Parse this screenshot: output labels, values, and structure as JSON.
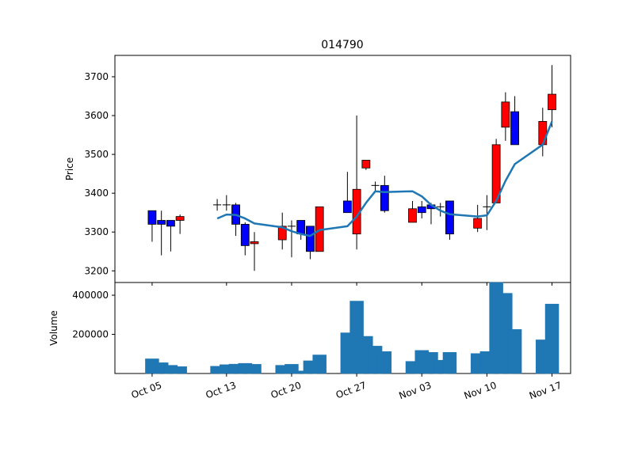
{
  "chart_data": {
    "type": "candlestick",
    "title": "014790",
    "price_panel": {
      "ylabel": "Price",
      "ylim": [
        3170,
        3755
      ],
      "yticks": [
        3200,
        3300,
        3400,
        3500,
        3600,
        3700
      ],
      "ytick_labels": [
        "3200",
        "3300",
        "3400",
        "3500",
        "3600",
        "3700"
      ],
      "up_color": "#ff0000",
      "down_color": "#0000ff",
      "moving_average_color": "#1f77b4",
      "candles": [
        {
          "date": "2020-10-05",
          "open": 3355,
          "high": 3355,
          "low": 3275,
          "close": 3320
        },
        {
          "date": "2020-10-06",
          "open": 3330,
          "high": 3355,
          "low": 3240,
          "close": 3320
        },
        {
          "date": "2020-10-07",
          "open": 3330,
          "high": 3330,
          "low": 3250,
          "close": 3315
        },
        {
          "date": "2020-10-08",
          "open": 3330,
          "high": 3345,
          "low": 3295,
          "close": 3340
        },
        {
          "date": "2020-10-12",
          "open": 3370,
          "high": 3385,
          "low": 3355,
          "close": 3370
        },
        {
          "date": "2020-10-13",
          "open": 3370,
          "high": 3395,
          "low": 3355,
          "close": 3370
        },
        {
          "date": "2020-10-14",
          "open": 3370,
          "high": 3375,
          "low": 3290,
          "close": 3320
        },
        {
          "date": "2020-10-15",
          "open": 3320,
          "high": 3325,
          "low": 3240,
          "close": 3265
        },
        {
          "date": "2020-10-16",
          "open": 3270,
          "high": 3300,
          "low": 3200,
          "close": 3275
        },
        {
          "date": "2020-10-19",
          "open": 3280,
          "high": 3350,
          "low": 3255,
          "close": 3315
        },
        {
          "date": "2020-10-20",
          "open": 3315,
          "high": 3330,
          "low": 3235,
          "close": 3315
        },
        {
          "date": "2020-10-21",
          "open": 3330,
          "high": 3330,
          "low": 3280,
          "close": 3295
        },
        {
          "date": "2020-10-22",
          "open": 3315,
          "high": 3315,
          "low": 3230,
          "close": 3250
        },
        {
          "date": "2020-10-23",
          "open": 3250,
          "high": 3365,
          "low": 3250,
          "close": 3365
        },
        {
          "date": "2020-10-26",
          "open": 3380,
          "high": 3455,
          "low": 3350,
          "close": 3350
        },
        {
          "date": "2020-10-27",
          "open": 3295,
          "high": 3600,
          "low": 3255,
          "close": 3410
        },
        {
          "date": "2020-10-28",
          "open": 3465,
          "high": 3485,
          "low": 3460,
          "close": 3485
        },
        {
          "date": "2020-10-29",
          "open": 3420,
          "high": 3430,
          "low": 3405,
          "close": 3420
        },
        {
          "date": "2020-10-30",
          "open": 3420,
          "high": 3445,
          "low": 3350,
          "close": 3355
        },
        {
          "date": "2020-11-02",
          "open": 3325,
          "high": 3380,
          "low": 3325,
          "close": 3360
        },
        {
          "date": "2020-11-03",
          "open": 3365,
          "high": 3380,
          "low": 3335,
          "close": 3350
        },
        {
          "date": "2020-11-04",
          "open": 3370,
          "high": 3375,
          "low": 3320,
          "close": 3360
        },
        {
          "date": "2020-11-05",
          "open": 3365,
          "high": 3375,
          "low": 3340,
          "close": 3365
        },
        {
          "date": "2020-11-06",
          "open": 3380,
          "high": 3380,
          "low": 3280,
          "close": 3295
        },
        {
          "date": "2020-11-09",
          "open": 3310,
          "high": 3370,
          "low": 3300,
          "close": 3335
        },
        {
          "date": "2020-11-10",
          "open": 3365,
          "high": 3395,
          "low": 3305,
          "close": 3365
        },
        {
          "date": "2020-11-11",
          "open": 3375,
          "high": 3540,
          "low": 3375,
          "close": 3525
        },
        {
          "date": "2020-11-12",
          "open": 3570,
          "high": 3660,
          "low": 3535,
          "close": 3635
        },
        {
          "date": "2020-11-13",
          "open": 3610,
          "high": 3650,
          "low": 3525,
          "close": 3525
        },
        {
          "date": "2020-11-16",
          "open": 3525,
          "high": 3620,
          "low": 3495,
          "close": 3585
        },
        {
          "date": "2020-11-17",
          "open": 3615,
          "high": 3730,
          "low": 3570,
          "close": 3655
        }
      ],
      "moving_average": [
        {
          "date": "2020-10-12",
          "value": 3335
        },
        {
          "date": "2020-10-13",
          "value": 3345
        },
        {
          "date": "2020-10-14",
          "value": 3344
        },
        {
          "date": "2020-10-15",
          "value": 3335
        },
        {
          "date": "2020-10-16",
          "value": 3322
        },
        {
          "date": "2020-10-19",
          "value": 3312
        },
        {
          "date": "2020-10-20",
          "value": 3302
        },
        {
          "date": "2020-10-21",
          "value": 3295
        },
        {
          "date": "2020-10-22",
          "value": 3290
        },
        {
          "date": "2020-10-23",
          "value": 3305
        },
        {
          "date": "2020-10-26",
          "value": 3315
        },
        {
          "date": "2020-10-27",
          "value": 3340
        },
        {
          "date": "2020-10-28",
          "value": 3375
        },
        {
          "date": "2020-10-29",
          "value": 3405
        },
        {
          "date": "2020-10-30",
          "value": 3403
        },
        {
          "date": "2020-11-02",
          "value": 3405
        },
        {
          "date": "2020-11-03",
          "value": 3392
        },
        {
          "date": "2020-11-04",
          "value": 3370
        },
        {
          "date": "2020-11-05",
          "value": 3355
        },
        {
          "date": "2020-11-06",
          "value": 3346
        },
        {
          "date": "2020-11-09",
          "value": 3340
        },
        {
          "date": "2020-11-10",
          "value": 3343
        },
        {
          "date": "2020-11-11",
          "value": 3380
        },
        {
          "date": "2020-11-12",
          "value": 3432
        },
        {
          "date": "2020-11-13",
          "value": 3475
        },
        {
          "date": "2020-11-16",
          "value": 3525
        },
        {
          "date": "2020-11-17",
          "value": 3585
        }
      ]
    },
    "volume_panel": {
      "ylabel": "Volume",
      "ylim": [
        0,
        465000
      ],
      "yticks": [
        200000,
        400000
      ],
      "ytick_labels": [
        "200000",
        "400000"
      ],
      "bar_color": "#1f77b4",
      "volumes": [
        {
          "date": "2020-10-05",
          "value": 75000
        },
        {
          "date": "2020-10-06",
          "value": 55000
        },
        {
          "date": "2020-10-07",
          "value": 42000
        },
        {
          "date": "2020-10-08",
          "value": 35000
        },
        {
          "date": "2020-10-12",
          "value": 37000
        },
        {
          "date": "2020-10-13",
          "value": 45000
        },
        {
          "date": "2020-10-14",
          "value": 48000
        },
        {
          "date": "2020-10-15",
          "value": 52000
        },
        {
          "date": "2020-10-16",
          "value": 47000
        },
        {
          "date": "2020-10-19",
          "value": 42000
        },
        {
          "date": "2020-10-20",
          "value": 47000
        },
        {
          "date": "2020-10-21",
          "value": 13000
        },
        {
          "date": "2020-10-22",
          "value": 65000
        },
        {
          "date": "2020-10-23",
          "value": 95000
        },
        {
          "date": "2020-10-26",
          "value": 208000
        },
        {
          "date": "2020-10-27",
          "value": 370000
        },
        {
          "date": "2020-10-28",
          "value": 190000
        },
        {
          "date": "2020-10-29",
          "value": 140000
        },
        {
          "date": "2020-10-30",
          "value": 112000
        },
        {
          "date": "2020-11-02",
          "value": 62000
        },
        {
          "date": "2020-11-03",
          "value": 118000
        },
        {
          "date": "2020-11-04",
          "value": 108000
        },
        {
          "date": "2020-11-05",
          "value": 68000
        },
        {
          "date": "2020-11-06",
          "value": 108000
        },
        {
          "date": "2020-11-09",
          "value": 102000
        },
        {
          "date": "2020-11-10",
          "value": 112000
        },
        {
          "date": "2020-11-11",
          "value": 465000
        },
        {
          "date": "2020-11-12",
          "value": 410000
        },
        {
          "date": "2020-11-13",
          "value": 225000
        },
        {
          "date": "2020-11-16",
          "value": 172000
        },
        {
          "date": "2020-11-17",
          "value": 355000
        }
      ]
    },
    "xaxis": {
      "type": "date",
      "range": [
        "2020-10-01",
        "2020-11-19"
      ],
      "ticks": [
        "2020-10-05",
        "2020-10-13",
        "2020-10-20",
        "2020-10-27",
        "2020-11-03",
        "2020-11-10",
        "2020-11-17"
      ],
      "tick_labels": [
        "Oct 05",
        "Oct 13",
        "Oct 20",
        "Oct 27",
        "Nov 03",
        "Nov 10",
        "Nov 17"
      ],
      "tick_rotation": 20
    },
    "grid": false,
    "legend": "none"
  }
}
